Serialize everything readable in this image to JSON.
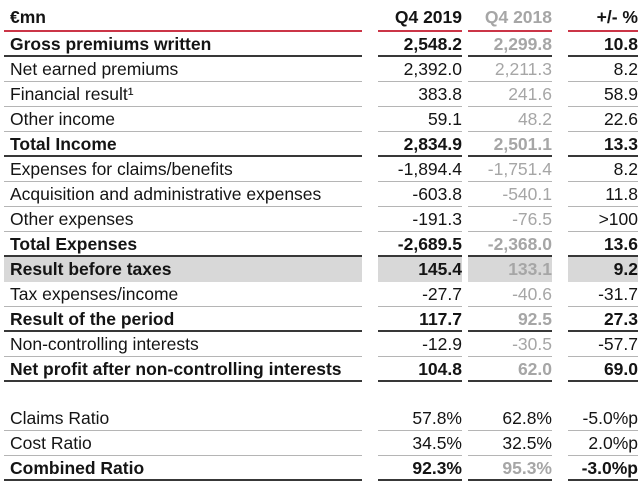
{
  "header": {
    "unit_label": "€mn",
    "col_q4_2019": "Q4 2019",
    "col_q4_2018": "Q4 2018",
    "col_change": "+/- %"
  },
  "rows": [
    {
      "label": "Gross premiums written",
      "q4_2019": "2,548.2",
      "q4_2018": "2,299.8",
      "change": "10.8",
      "bold": true,
      "highlight": false,
      "spacer": false,
      "q4_2018_black": false
    },
    {
      "label": "Net earned premiums",
      "q4_2019": "2,392.0",
      "q4_2018": "2,211.3",
      "change": "8.2",
      "bold": false,
      "highlight": false,
      "spacer": false,
      "q4_2018_black": false
    },
    {
      "label": "Financial result¹",
      "q4_2019": "383.8",
      "q4_2018": "241.6",
      "change": "58.9",
      "bold": false,
      "highlight": false,
      "spacer": false,
      "q4_2018_black": false
    },
    {
      "label": "Other income",
      "q4_2019": "59.1",
      "q4_2018": "48.2",
      "change": "22.6",
      "bold": false,
      "highlight": false,
      "spacer": false,
      "q4_2018_black": false
    },
    {
      "label": "Total Income",
      "q4_2019": "2,834.9",
      "q4_2018": "2,501.1",
      "change": "13.3",
      "bold": true,
      "highlight": false,
      "spacer": false,
      "q4_2018_black": false
    },
    {
      "label": "Expenses for claims/benefits",
      "q4_2019": "-1,894.4",
      "q4_2018": "-1,751.4",
      "change": "8.2",
      "bold": false,
      "highlight": false,
      "spacer": false,
      "q4_2018_black": false
    },
    {
      "label": "Acquisition and administrative expenses",
      "q4_2019": "-603.8",
      "q4_2018": "-540.1",
      "change": "11.8",
      "bold": false,
      "highlight": false,
      "spacer": false,
      "q4_2018_black": false
    },
    {
      "label": "Other expenses",
      "q4_2019": "-191.3",
      "q4_2018": "-76.5",
      "change": ">100",
      "bold": false,
      "highlight": false,
      "spacer": false,
      "q4_2018_black": false
    },
    {
      "label": "Total Expenses",
      "q4_2019": "-2,689.5",
      "q4_2018": "-2,368.0",
      "change": "13.6",
      "bold": true,
      "highlight": false,
      "spacer": false,
      "q4_2018_black": false
    },
    {
      "label": "Result before taxes",
      "q4_2019": "145.4",
      "q4_2018": "133.1",
      "change": "9.2",
      "bold": true,
      "highlight": true,
      "spacer": false,
      "q4_2018_black": false
    },
    {
      "label": "Tax expenses/income",
      "q4_2019": "-27.7",
      "q4_2018": "-40.6",
      "change": "-31.7",
      "bold": false,
      "highlight": false,
      "spacer": false,
      "q4_2018_black": false
    },
    {
      "label": "Result of the period",
      "q4_2019": "117.7",
      "q4_2018": "92.5",
      "change": "27.3",
      "bold": true,
      "highlight": false,
      "spacer": false,
      "q4_2018_black": false
    },
    {
      "label": "Non-controlling interests",
      "q4_2019": "-12.9",
      "q4_2018": "-30.5",
      "change": "-57.7",
      "bold": false,
      "highlight": false,
      "spacer": false,
      "q4_2018_black": false
    },
    {
      "label": "Net profit after non-controlling interests",
      "q4_2019": "104.8",
      "q4_2018": "62.0",
      "change": "69.0",
      "bold": true,
      "highlight": false,
      "spacer": false,
      "q4_2018_black": false
    },
    {
      "label": "",
      "q4_2019": "",
      "q4_2018": "",
      "change": "",
      "bold": false,
      "highlight": false,
      "spacer": true,
      "q4_2018_black": false
    },
    {
      "label": "Claims Ratio",
      "q4_2019": "57.8%",
      "q4_2018": "62.8%",
      "change": "-5.0%p",
      "bold": false,
      "highlight": false,
      "spacer": false,
      "q4_2018_black": true
    },
    {
      "label": "Cost Ratio",
      "q4_2019": "34.5%",
      "q4_2018": "32.5%",
      "change": "2.0%p",
      "bold": false,
      "highlight": false,
      "spacer": false,
      "q4_2018_black": true
    },
    {
      "label": "Combined Ratio",
      "q4_2019": "92.3%",
      "q4_2018": "95.3%",
      "change": "-3.0%p",
      "bold": true,
      "highlight": false,
      "spacer": false,
      "q4_2018_black": false
    }
  ],
  "colors": {
    "accent_red_rule": "#cb3547",
    "text_black": "#141414",
    "text_gray": "#a6a6a6",
    "highlight_bg": "#d8d8d8",
    "rule_light": "#b5b5b5",
    "rule_dark": "#383838"
  }
}
